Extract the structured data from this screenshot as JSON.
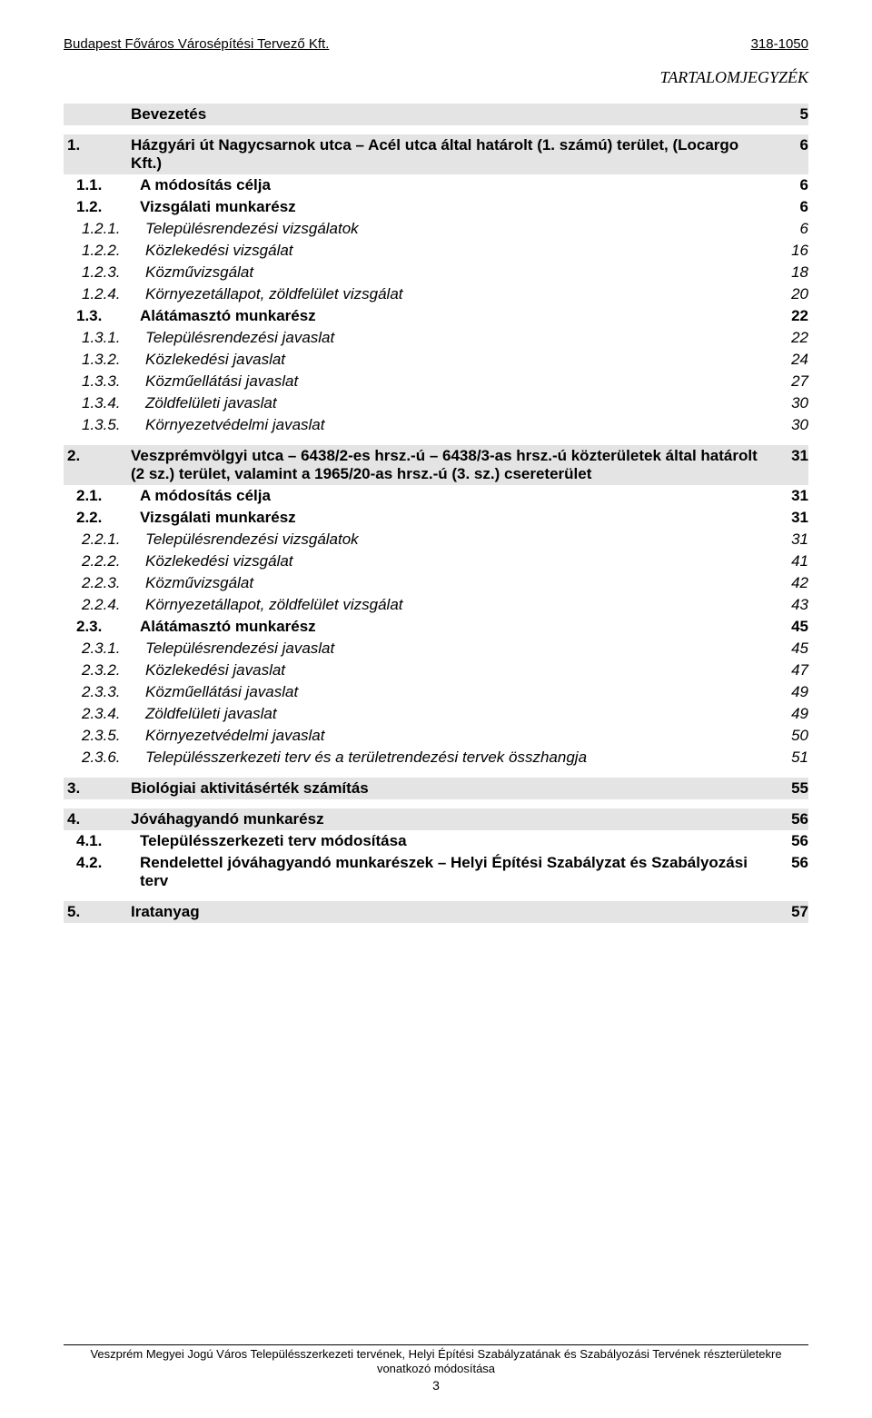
{
  "header": {
    "left": "Budapest Főváros Városépítési Tervező Kft.",
    "right": "318-1050"
  },
  "toc_title": "TARTALOMJEGYZÉK",
  "rows": [
    {
      "num": "",
      "text": "Bevezetés",
      "page": "5",
      "shaded": true,
      "bold": true,
      "italic": false,
      "indent": 0
    },
    {
      "num": "1.",
      "text": "Házgyári út Nagycsarnok utca – Acél utca által határolt (1. számú) terület, (Locargo Kft.)",
      "page": "6",
      "shaded": true,
      "bold": true,
      "italic": false,
      "indent": 0
    },
    {
      "num": "1.1.",
      "text": "A módosítás célja",
      "page": "6",
      "shaded": false,
      "bold": true,
      "italic": false,
      "indent": 1
    },
    {
      "num": "1.2.",
      "text": "Vizsgálati munkarész",
      "page": "6",
      "shaded": false,
      "bold": true,
      "italic": false,
      "indent": 1
    },
    {
      "num": "1.2.1.",
      "text": "Településrendezési vizsgálatok",
      "page": "6",
      "shaded": false,
      "bold": false,
      "italic": true,
      "indent": 2
    },
    {
      "num": "1.2.2.",
      "text": "Közlekedési vizsgálat",
      "page": "16",
      "shaded": false,
      "bold": false,
      "italic": true,
      "indent": 2
    },
    {
      "num": "1.2.3.",
      "text": "Közművizsgálat",
      "page": "18",
      "shaded": false,
      "bold": false,
      "italic": true,
      "indent": 2
    },
    {
      "num": "1.2.4.",
      "text": "Környezetállapot, zöldfelület vizsgálat",
      "page": "20",
      "shaded": false,
      "bold": false,
      "italic": true,
      "indent": 2
    },
    {
      "num": "1.3.",
      "text": "Alátámasztó munkarész",
      "page": "22",
      "shaded": false,
      "bold": true,
      "italic": false,
      "indent": 1
    },
    {
      "num": "1.3.1.",
      "text": "Településrendezési javaslat",
      "page": "22",
      "shaded": false,
      "bold": false,
      "italic": true,
      "indent": 2
    },
    {
      "num": "1.3.2.",
      "text": "Közlekedési javaslat",
      "page": "24",
      "shaded": false,
      "bold": false,
      "italic": true,
      "indent": 2
    },
    {
      "num": "1.3.3.",
      "text": "Közműellátási javaslat",
      "page": "27",
      "shaded": false,
      "bold": false,
      "italic": true,
      "indent": 2
    },
    {
      "num": "1.3.4.",
      "text": "Zöldfelületi javaslat",
      "page": "30",
      "shaded": false,
      "bold": false,
      "italic": true,
      "indent": 2
    },
    {
      "num": "1.3.5.",
      "text": "Környezetvédelmi javaslat",
      "page": "30",
      "shaded": false,
      "bold": false,
      "italic": true,
      "indent": 2
    },
    {
      "num": "2.",
      "text": "Veszprémvölgyi utca – 6438/2-es hrsz.-ú – 6438/3-as hrsz.-ú közterületek által határolt (2 sz.) terület, valamint a 1965/20-as hrsz.-ú (3. sz.) csereterület",
      "page": "31",
      "shaded": true,
      "bold": true,
      "italic": false,
      "indent": 0
    },
    {
      "num": "2.1.",
      "text": "A módosítás célja",
      "page": "31",
      "shaded": false,
      "bold": true,
      "italic": false,
      "indent": 1
    },
    {
      "num": "2.2.",
      "text": "Vizsgálati munkarész",
      "page": "31",
      "shaded": false,
      "bold": true,
      "italic": false,
      "indent": 1
    },
    {
      "num": "2.2.1.",
      "text": "Településrendezési vizsgálatok",
      "page": "31",
      "shaded": false,
      "bold": false,
      "italic": true,
      "indent": 2
    },
    {
      "num": "2.2.2.",
      "text": "Közlekedési vizsgálat",
      "page": "41",
      "shaded": false,
      "bold": false,
      "italic": true,
      "indent": 2
    },
    {
      "num": "2.2.3.",
      "text": "Közművizsgálat",
      "page": "42",
      "shaded": false,
      "bold": false,
      "italic": true,
      "indent": 2
    },
    {
      "num": "2.2.4.",
      "text": "Környezetállapot, zöldfelület vizsgálat",
      "page": "43",
      "shaded": false,
      "bold": false,
      "italic": true,
      "indent": 2
    },
    {
      "num": "2.3.",
      "text": "Alátámasztó munkarész",
      "page": "45",
      "shaded": false,
      "bold": true,
      "italic": false,
      "indent": 1
    },
    {
      "num": "2.3.1.",
      "text": "Településrendezési javaslat",
      "page": "45",
      "shaded": false,
      "bold": false,
      "italic": true,
      "indent": 2
    },
    {
      "num": "2.3.2.",
      "text": "Közlekedési javaslat",
      "page": "47",
      "shaded": false,
      "bold": false,
      "italic": true,
      "indent": 2
    },
    {
      "num": "2.3.3.",
      "text": "Közműellátási javaslat",
      "page": "49",
      "shaded": false,
      "bold": false,
      "italic": true,
      "indent": 2
    },
    {
      "num": "2.3.4.",
      "text": "Zöldfelületi javaslat",
      "page": "49",
      "shaded": false,
      "bold": false,
      "italic": true,
      "indent": 2
    },
    {
      "num": "2.3.5.",
      "text": "Környezetvédelmi javaslat",
      "page": "50",
      "shaded": false,
      "bold": false,
      "italic": true,
      "indent": 2
    },
    {
      "num": "2.3.6.",
      "text": "Településszerkezeti terv és a területrendezési tervek összhangja",
      "page": "51",
      "shaded": false,
      "bold": false,
      "italic": true,
      "indent": 2
    },
    {
      "num": "3.",
      "text": "Biológiai aktivitásérték számítás",
      "page": "55",
      "shaded": true,
      "bold": true,
      "italic": false,
      "indent": 0
    },
    {
      "num": "4.",
      "text": "Jóváhagyandó munkarész",
      "page": "56",
      "shaded": true,
      "bold": true,
      "italic": false,
      "indent": 0
    },
    {
      "num": "4.1.",
      "text": "Településszerkezeti terv módosítása",
      "page": "56",
      "shaded": false,
      "bold": true,
      "italic": false,
      "indent": 1
    },
    {
      "num": "4.2.",
      "text": "Rendelettel jóváhagyandó munkarészek – Helyi Építési Szabályzat és Szabályozási terv",
      "page": "56",
      "shaded": false,
      "bold": true,
      "italic": false,
      "indent": 1
    },
    {
      "num": "5.",
      "text": "Iratanyag",
      "page": "57",
      "shaded": true,
      "bold": true,
      "italic": false,
      "indent": 0
    }
  ],
  "footer": {
    "line1": "Veszprém Megyei Jogú Város Településszerkezeti tervének, Helyi Építési Szabályzatának és Szabályozási Tervének részterületekre",
    "line2": "vonatkozó módosítása",
    "page_number": "3"
  }
}
